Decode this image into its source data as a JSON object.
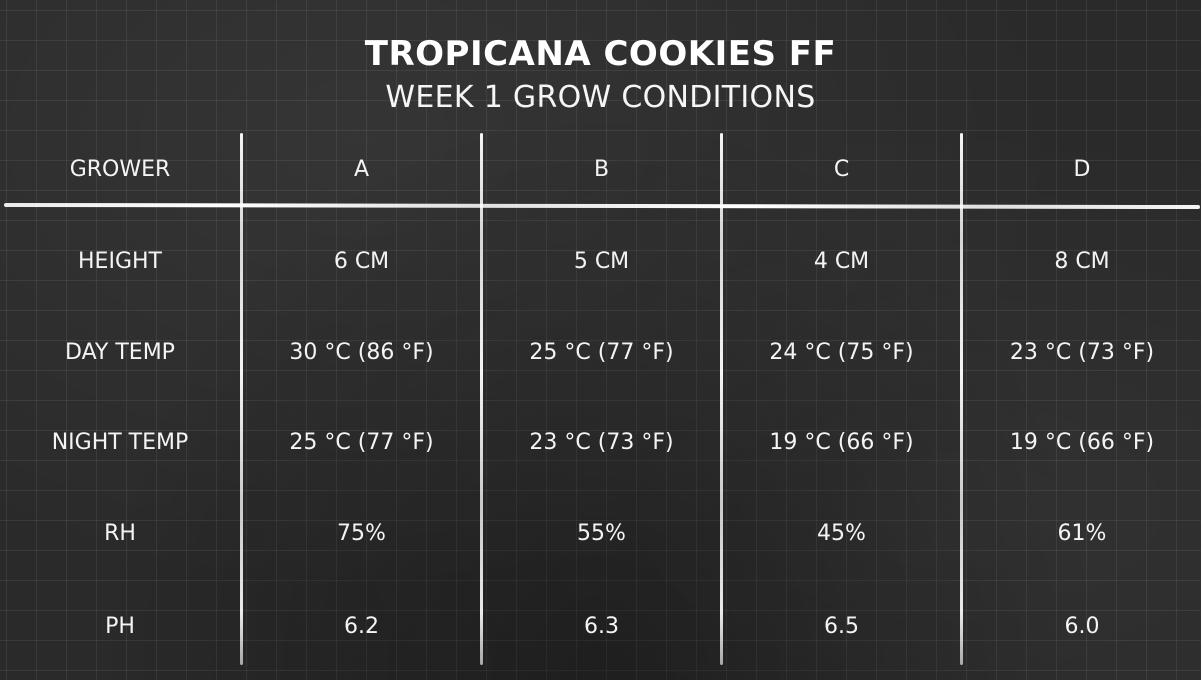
{
  "title": "TROPICANA COOKIES FF",
  "subtitle": "WEEK 1 GROW CONDITIONS",
  "table": {
    "header": [
      "GROWER",
      "A",
      "B",
      "C",
      "D"
    ],
    "rows": [
      [
        "HEIGHT",
        "6 CM",
        "5 CM",
        "4 CM",
        "8 CM"
      ],
      [
        "DAY TEMP",
        "30 °C (86 °F)",
        "25 °C (77 °F)",
        "24 °C (75 °F)",
        "23 °C (73 °F)"
      ],
      [
        "NIGHT TEMP",
        "25 °C (77 °F)",
        "23 °C (73 °F)",
        "19 °C (66 °F)",
        "19 °C (66 °F)"
      ],
      [
        "RH",
        "75%",
        "55%",
        "45%",
        "61%"
      ],
      [
        "PH",
        "6.2",
        "6.3",
        "6.5",
        "6.0"
      ]
    ]
  }
}
